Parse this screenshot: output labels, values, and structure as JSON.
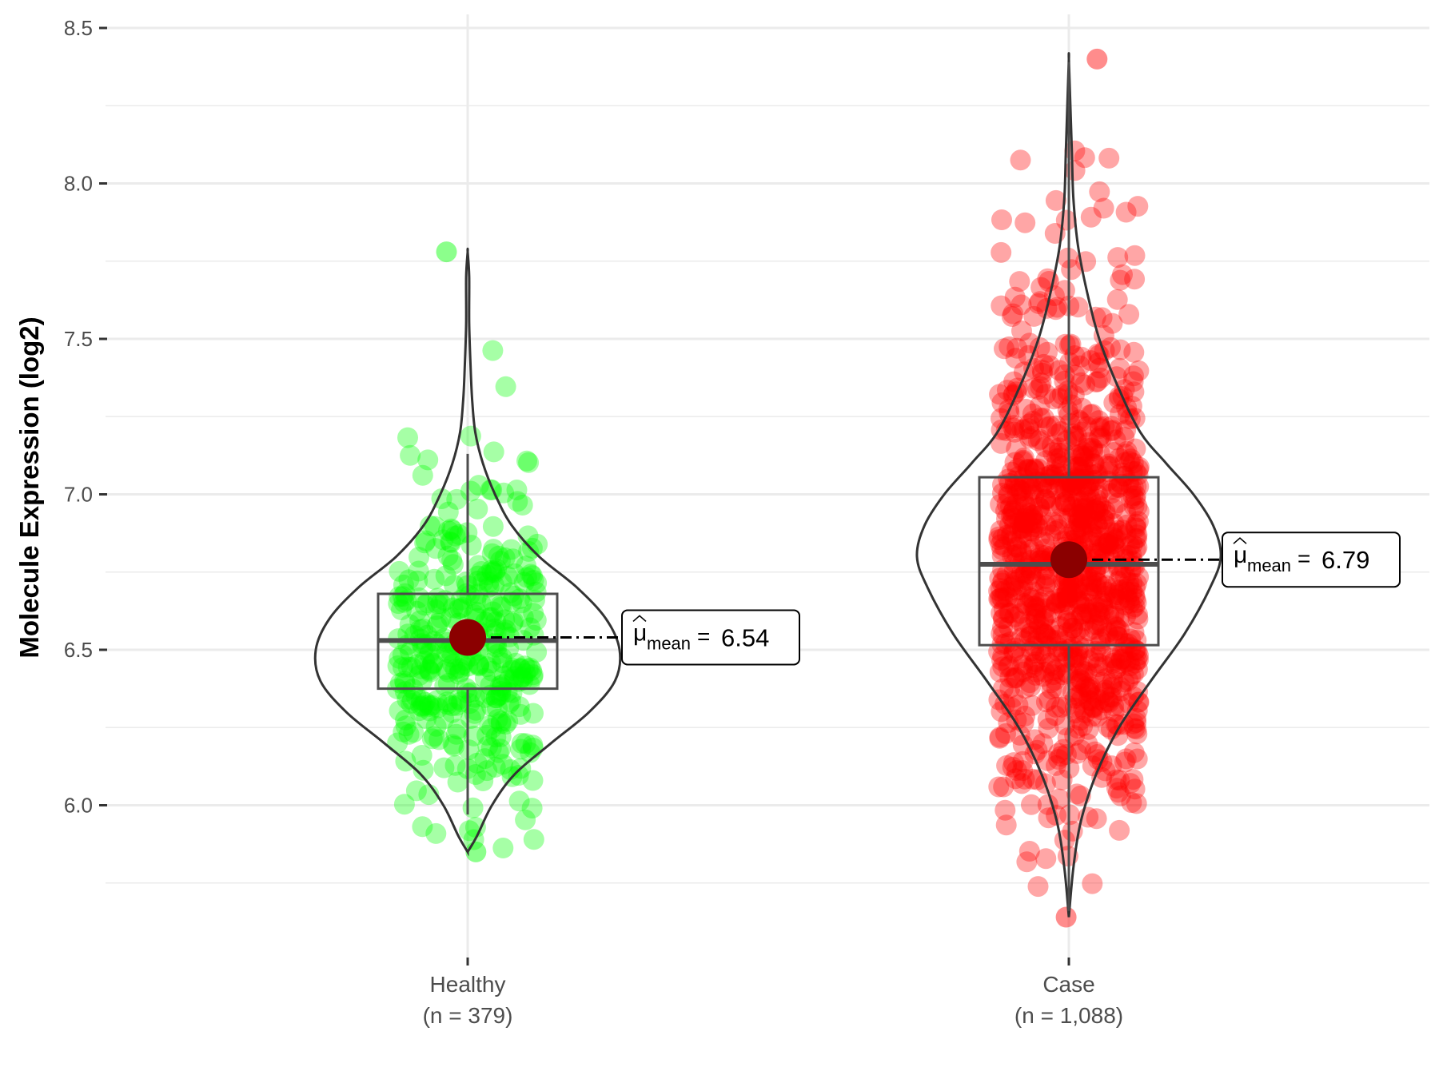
{
  "chart_data": {
    "type": "violin-box-scatter",
    "title": "",
    "ylabel": "Molecule Expression (log2)",
    "xlabel": "",
    "ylim": [
      5.5,
      8.55
    ],
    "yticks": [
      6.0,
      6.5,
      7.0,
      7.5,
      8.0,
      8.5
    ],
    "ytick_labels": [
      "6.0",
      "6.5",
      "7.0",
      "7.5",
      "8.0",
      "8.5"
    ],
    "grid": true,
    "legend": "none",
    "groups": [
      {
        "name": "Healthy",
        "n_label": "(n = 379)",
        "color": "#00ff00",
        "mean": 6.54,
        "mean_label": "6.54",
        "median": 6.53,
        "q1": 6.375,
        "q3": 6.68,
        "whisker_low": 5.97,
        "whisker_high": 7.13,
        "min": 5.85,
        "max": 7.78,
        "violin": [
          [
            5.85,
            0.0
          ],
          [
            5.9,
            0.06
          ],
          [
            6.0,
            0.16
          ],
          [
            6.1,
            0.31
          ],
          [
            6.2,
            0.55
          ],
          [
            6.3,
            0.8
          ],
          [
            6.4,
            0.97
          ],
          [
            6.5,
            1.0
          ],
          [
            6.6,
            0.91
          ],
          [
            6.7,
            0.72
          ],
          [
            6.8,
            0.47
          ],
          [
            6.9,
            0.29
          ],
          [
            7.0,
            0.18
          ],
          [
            7.1,
            0.1
          ],
          [
            7.2,
            0.05
          ],
          [
            7.3,
            0.03
          ],
          [
            7.4,
            0.02
          ],
          [
            7.55,
            0.01
          ],
          [
            7.7,
            0.01
          ],
          [
            7.78,
            0.0
          ]
        ]
      },
      {
        "name": "Case",
        "n_label": "(n = 1,088)",
        "color": "#ff0000",
        "mean": 6.79,
        "mean_label": "6.79",
        "median": 6.775,
        "q1": 6.515,
        "q3": 7.055,
        "whisker_low": 5.66,
        "whisker_high": 8.39,
        "min": 5.64,
        "max": 8.4,
        "violin": [
          [
            5.64,
            0.0
          ],
          [
            5.8,
            0.03
          ],
          [
            5.95,
            0.08
          ],
          [
            6.1,
            0.18
          ],
          [
            6.25,
            0.33
          ],
          [
            6.4,
            0.54
          ],
          [
            6.55,
            0.76
          ],
          [
            6.7,
            0.93
          ],
          [
            6.8,
            1.0
          ],
          [
            6.9,
            0.95
          ],
          [
            7.0,
            0.82
          ],
          [
            7.1,
            0.64
          ],
          [
            7.2,
            0.47
          ],
          [
            7.35,
            0.32
          ],
          [
            7.5,
            0.2
          ],
          [
            7.65,
            0.12
          ],
          [
            7.8,
            0.06
          ],
          [
            7.95,
            0.03
          ],
          [
            8.1,
            0.02
          ],
          [
            8.25,
            0.01
          ],
          [
            8.4,
            0.0
          ]
        ]
      }
    ]
  }
}
